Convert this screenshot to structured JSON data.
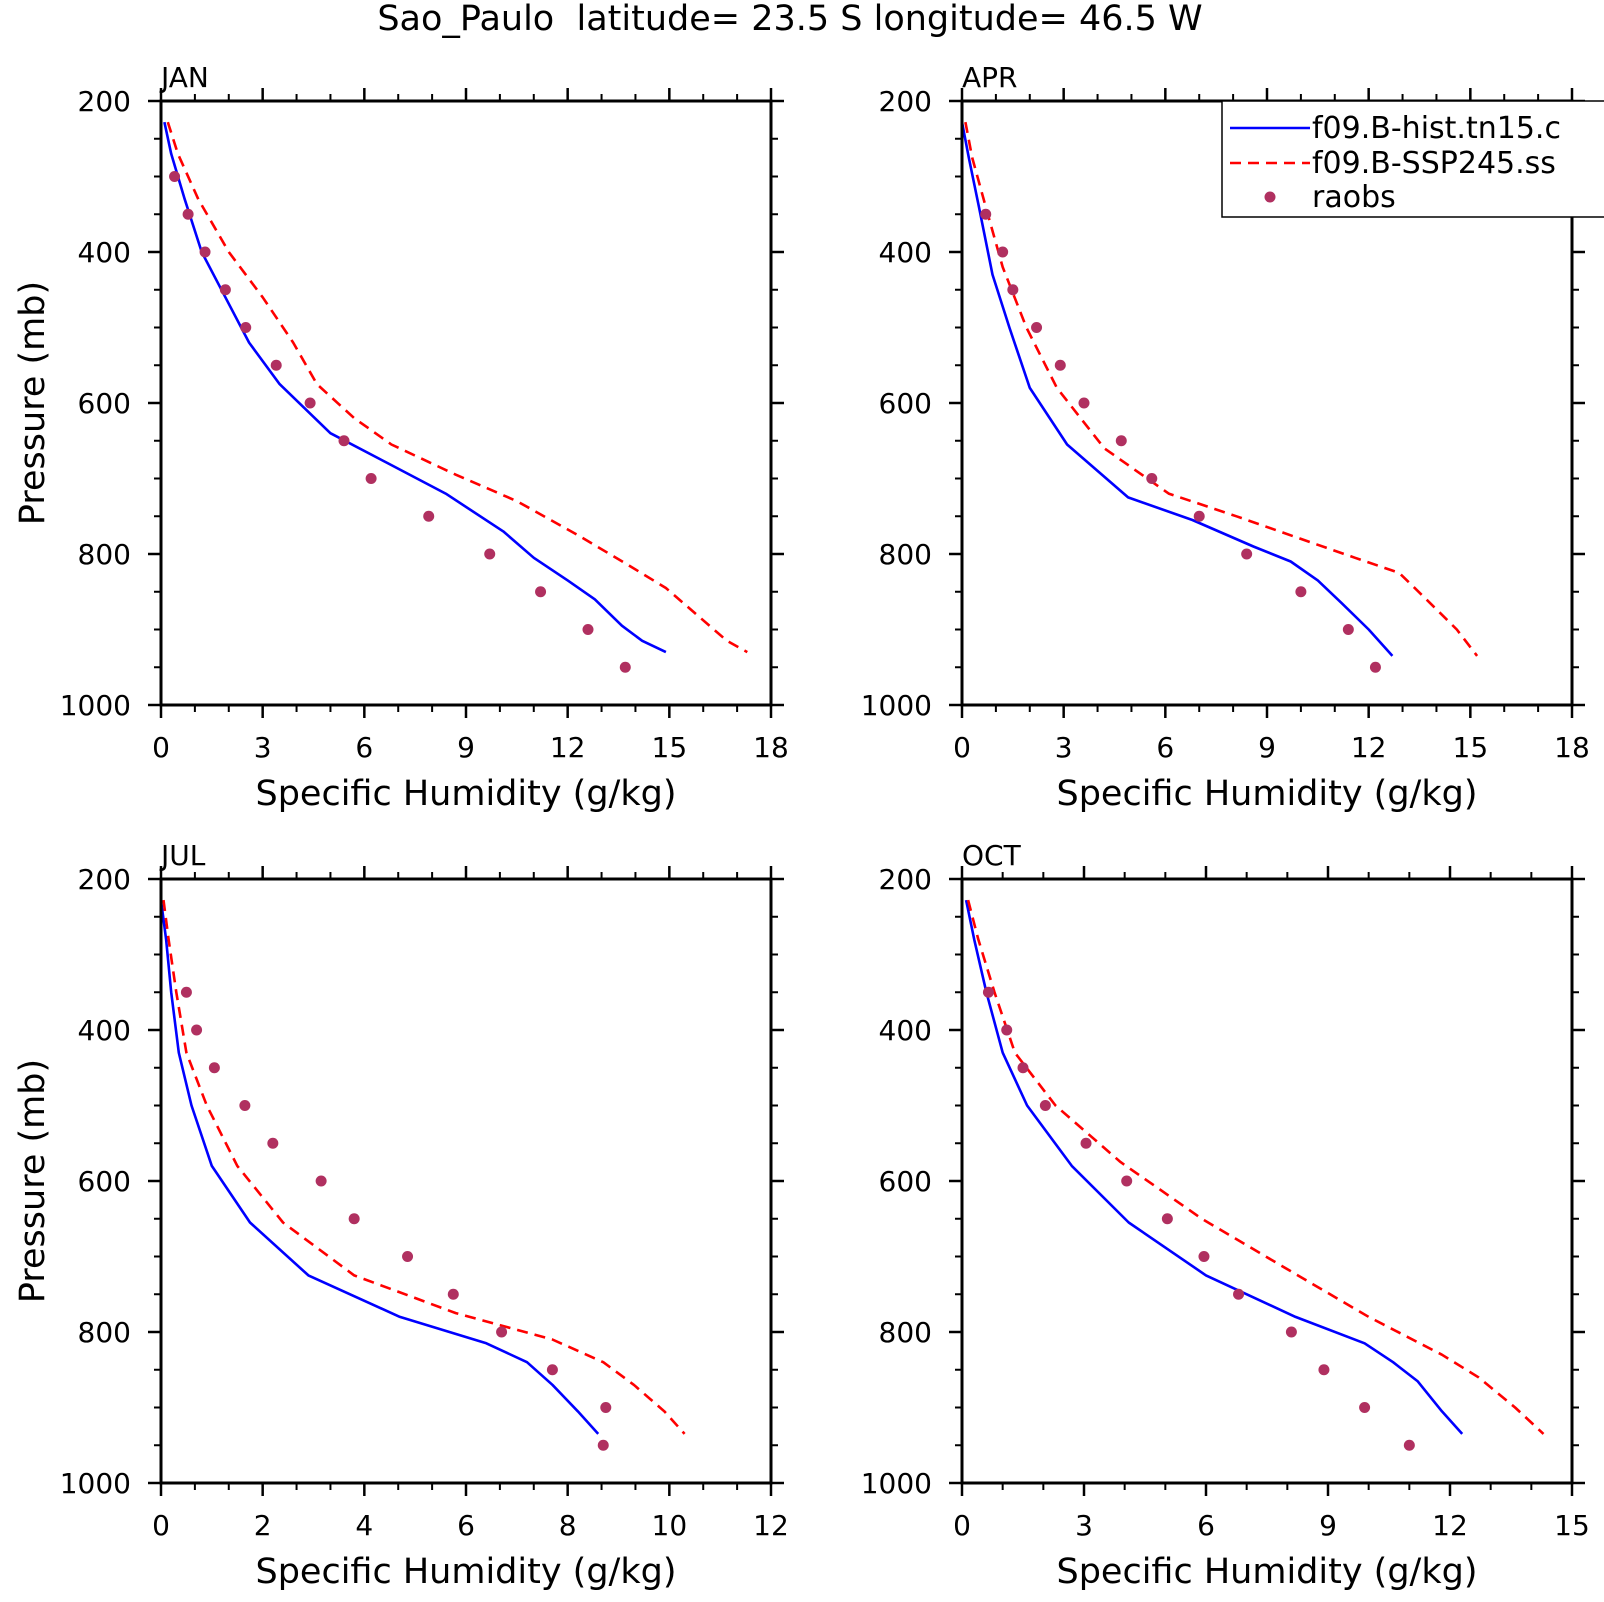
{
  "figure": {
    "title": "Sao_Paulo  latitude= 23.5 S longitude= 46.5 W"
  },
  "legend": {
    "placement": "top-right",
    "items": [
      {
        "label": "f09.B-hist.tn15.c",
        "style": "solid",
        "color": "#0000ff"
      },
      {
        "label": "f09.B-SSP245.ss",
        "style": "dashed",
        "color": "#ff0000"
      },
      {
        "label": "raobs",
        "style": "marker",
        "color": "#b03060"
      }
    ]
  },
  "colors": {
    "model_hist": "#0000ff",
    "model_ssp": "#ff0000",
    "raobs": "#b03060",
    "axes": "#000000"
  },
  "chart_data": [
    {
      "type": "line",
      "panel_label": "JAN",
      "xlabel": "Specific Humidity (g/kg)",
      "ylabel": "Pressure (mb)",
      "xlim": [
        0,
        18
      ],
      "xticks": [
        0,
        3,
        6,
        9,
        12,
        15,
        18
      ],
      "ylim": [
        1000,
        200
      ],
      "yticks": [
        200,
        400,
        600,
        800,
        1000
      ],
      "grid": false,
      "series": [
        {
          "name": "f09.B-hist.tn15.c",
          "style": "solid",
          "x": [
            0.1,
            0.3,
            0.7,
            1.2,
            1.9,
            2.6,
            3.5,
            5.0,
            6.7,
            8.4,
            10.1,
            11.0,
            12.0,
            12.8,
            13.6,
            14.2,
            14.9
          ],
          "y": [
            228,
            270,
            330,
            400,
            460,
            520,
            575,
            640,
            680,
            720,
            770,
            805,
            835,
            860,
            895,
            915,
            930
          ]
        },
        {
          "name": "f09.B-SSP245.ss",
          "style": "dashed",
          "x": [
            0.2,
            0.5,
            1.1,
            2.0,
            3.0,
            3.9,
            4.6,
            5.7,
            6.8,
            8.7,
            10.5,
            12.3,
            13.8,
            14.9,
            15.8,
            16.7,
            17.3
          ],
          "y": [
            228,
            270,
            330,
            400,
            460,
            520,
            575,
            620,
            655,
            695,
            730,
            775,
            815,
            845,
            880,
            915,
            930
          ]
        },
        {
          "name": "raobs",
          "style": "marker",
          "x": [
            0.4,
            0.8,
            1.3,
            1.9,
            2.5,
            3.4,
            4.4,
            5.4,
            6.2,
            7.9,
            9.7,
            11.2,
            12.6,
            13.7
          ],
          "y": [
            300,
            350,
            400,
            450,
            500,
            550,
            600,
            650,
            700,
            750,
            800,
            850,
            900,
            950
          ]
        }
      ]
    },
    {
      "type": "line",
      "panel_label": "APR",
      "xlabel": "Specific Humidity (g/kg)",
      "ylabel": "",
      "xlim": [
        0,
        18
      ],
      "xticks": [
        0,
        3,
        6,
        9,
        12,
        15,
        18
      ],
      "ylim": [
        1000,
        200
      ],
      "yticks": [
        200,
        400,
        600,
        800,
        1000
      ],
      "grid": false,
      "series": [
        {
          "name": "f09.B-hist.tn15.c",
          "style": "solid",
          "x": [
            0.0,
            0.2,
            0.5,
            0.9,
            1.4,
            2.0,
            3.1,
            4.9,
            6.8,
            8.6,
            9.7,
            10.5,
            11.2,
            12.0,
            12.7
          ],
          "y": [
            228,
            275,
            340,
            430,
            500,
            580,
            655,
            725,
            755,
            790,
            810,
            835,
            865,
            900,
            935
          ]
        },
        {
          "name": "f09.B-SSP245.ss",
          "style": "dashed",
          "x": [
            0.1,
            0.3,
            0.7,
            1.2,
            1.9,
            2.8,
            4.2,
            6.1,
            8.1,
            10.0,
            11.6,
            12.9,
            13.7,
            14.6,
            15.2
          ],
          "y": [
            228,
            275,
            340,
            420,
            500,
            580,
            660,
            720,
            750,
            780,
            805,
            825,
            860,
            900,
            935
          ]
        },
        {
          "name": "raobs",
          "style": "marker",
          "x": [
            0.7,
            1.2,
            1.5,
            2.2,
            2.9,
            3.6,
            4.7,
            5.6,
            7.0,
            8.4,
            10.0,
            11.4,
            12.2
          ],
          "y": [
            350,
            400,
            450,
            500,
            550,
            600,
            650,
            700,
            750,
            800,
            850,
            900,
            950
          ]
        }
      ]
    },
    {
      "type": "line",
      "panel_label": "JUL",
      "xlabel": "Specific Humidity (g/kg)",
      "ylabel": "Pressure (mb)",
      "xlim": [
        0,
        12
      ],
      "xticks": [
        0,
        2,
        4,
        6,
        8,
        10,
        12
      ],
      "ylim": [
        1000,
        200
      ],
      "yticks": [
        200,
        400,
        600,
        800,
        1000
      ],
      "grid": false,
      "series": [
        {
          "name": "f09.B-hist.tn15.c",
          "style": "solid",
          "x": [
            0.0,
            0.1,
            0.2,
            0.35,
            0.6,
            1.0,
            1.75,
            2.9,
            4.7,
            6.4,
            7.2,
            7.7,
            8.2,
            8.6
          ],
          "y": [
            228,
            280,
            350,
            430,
            500,
            580,
            655,
            725,
            780,
            815,
            840,
            870,
            905,
            935
          ]
        },
        {
          "name": "f09.B-SSP245.ss",
          "style": "dashed",
          "x": [
            0.05,
            0.15,
            0.3,
            0.5,
            0.9,
            1.5,
            2.4,
            3.8,
            5.8,
            7.7,
            8.7,
            9.3,
            9.9,
            10.3
          ],
          "y": [
            228,
            280,
            350,
            430,
            500,
            580,
            655,
            725,
            775,
            810,
            840,
            870,
            905,
            935
          ]
        },
        {
          "name": "raobs",
          "style": "marker",
          "x": [
            0.5,
            0.7,
            1.05,
            1.65,
            2.2,
            3.15,
            3.8,
            4.85,
            5.75,
            6.7,
            7.7,
            8.75,
            8.7
          ],
          "y": [
            350,
            400,
            450,
            500,
            550,
            600,
            650,
            700,
            750,
            800,
            850,
            900,
            950
          ]
        }
      ]
    },
    {
      "type": "line",
      "panel_label": "OCT",
      "xlabel": "Specific Humidity (g/kg)",
      "ylabel": "",
      "xlim": [
        0,
        15
      ],
      "xticks": [
        0,
        3,
        6,
        9,
        12,
        15
      ],
      "ylim": [
        1000,
        200
      ],
      "yticks": [
        200,
        400,
        600,
        800,
        1000
      ],
      "grid": false,
      "series": [
        {
          "name": "f09.B-hist.tn15.c",
          "style": "solid",
          "x": [
            0.1,
            0.3,
            0.6,
            1.0,
            1.6,
            2.7,
            4.1,
            6.0,
            8.2,
            9.9,
            10.6,
            11.2,
            11.8,
            12.3
          ],
          "y": [
            228,
            280,
            350,
            430,
            500,
            580,
            655,
            725,
            780,
            815,
            840,
            865,
            905,
            935
          ]
        },
        {
          "name": "f09.B-SSP245.ss",
          "style": "dashed",
          "x": [
            0.15,
            0.4,
            0.8,
            1.3,
            2.3,
            3.9,
            5.9,
            8.1,
            10.0,
            11.8,
            12.7,
            13.6,
            14.3
          ],
          "y": [
            228,
            280,
            350,
            430,
            500,
            575,
            650,
            720,
            780,
            830,
            860,
            900,
            935
          ]
        },
        {
          "name": "raobs",
          "style": "marker",
          "x": [
            0.65,
            1.1,
            1.5,
            2.05,
            3.05,
            4.05,
            5.05,
            5.95,
            6.8,
            8.1,
            8.9,
            9.9,
            11.0
          ],
          "y": [
            350,
            400,
            450,
            500,
            550,
            600,
            650,
            700,
            750,
            800,
            850,
            900,
            950
          ]
        }
      ]
    }
  ]
}
